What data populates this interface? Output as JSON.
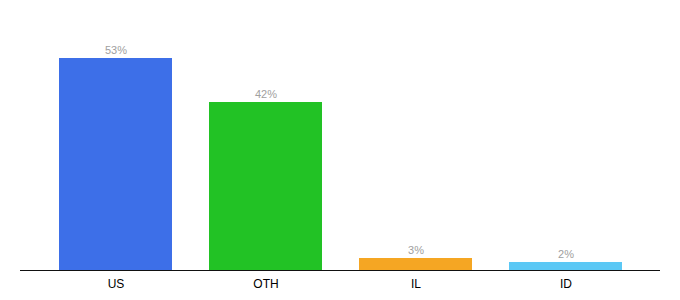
{
  "chart_data": {
    "type": "bar",
    "categories": [
      "US",
      "OTH",
      "IL",
      "ID"
    ],
    "values": [
      53,
      42,
      3,
      2
    ],
    "value_labels": [
      "53%",
      "42%",
      "3%",
      "2%"
    ],
    "colors": [
      "#3d6fe8",
      "#22c225",
      "#f5a623",
      "#5bc8f5"
    ],
    "ylim": [
      0,
      60
    ],
    "data_labels": true,
    "grid": false,
    "tick_labels": "x"
  }
}
